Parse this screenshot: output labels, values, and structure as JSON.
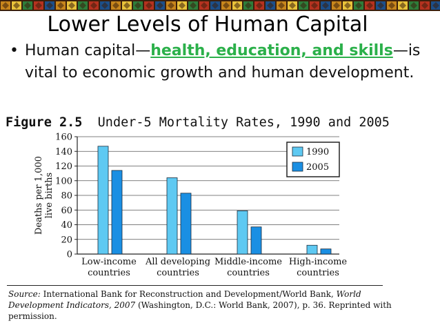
{
  "slide": {
    "title": "Lower Levels of Human Capital",
    "bullet_char": "•",
    "bullet_pre": "Human capital—",
    "bullet_highlight": "health, education, and skills",
    "bullet_post": "—is vital to economic growth and human development.",
    "highlight_color": "#2bb04a"
  },
  "figure": {
    "label": "Figure 2.5",
    "caption": "Under-5 Mortality Rates, 1990 and 2005"
  },
  "chart_data": {
    "type": "bar",
    "title": "",
    "categories": [
      [
        "Low-income",
        "countries"
      ],
      [
        "All developing",
        "countries"
      ],
      [
        "Middle-income",
        "countries"
      ],
      [
        "High-income",
        "countries"
      ]
    ],
    "series": [
      {
        "name": "1990",
        "values": [
          147,
          104,
          59,
          12
        ],
        "color": "#5ec9f2"
      },
      {
        "name": "2005",
        "values": [
          114,
          83,
          37,
          7
        ],
        "color": "#1a8fe3"
      }
    ],
    "ylabel_lines": [
      "Deaths per 1,000",
      "live births"
    ],
    "ylim": [
      0,
      160
    ],
    "yticks": [
      0,
      20,
      40,
      60,
      80,
      100,
      120,
      140,
      160
    ],
    "grid": true,
    "legend_position": "top-right"
  },
  "source": {
    "label": "Source:",
    "text_a": " International Bank for Reconstruction and Development/World Bank, ",
    "italic": "World Development Indicators, 2007",
    "text_b": " (Washington, D.C.: World Bank, 2007), p. 36. Reprinted with permission."
  }
}
